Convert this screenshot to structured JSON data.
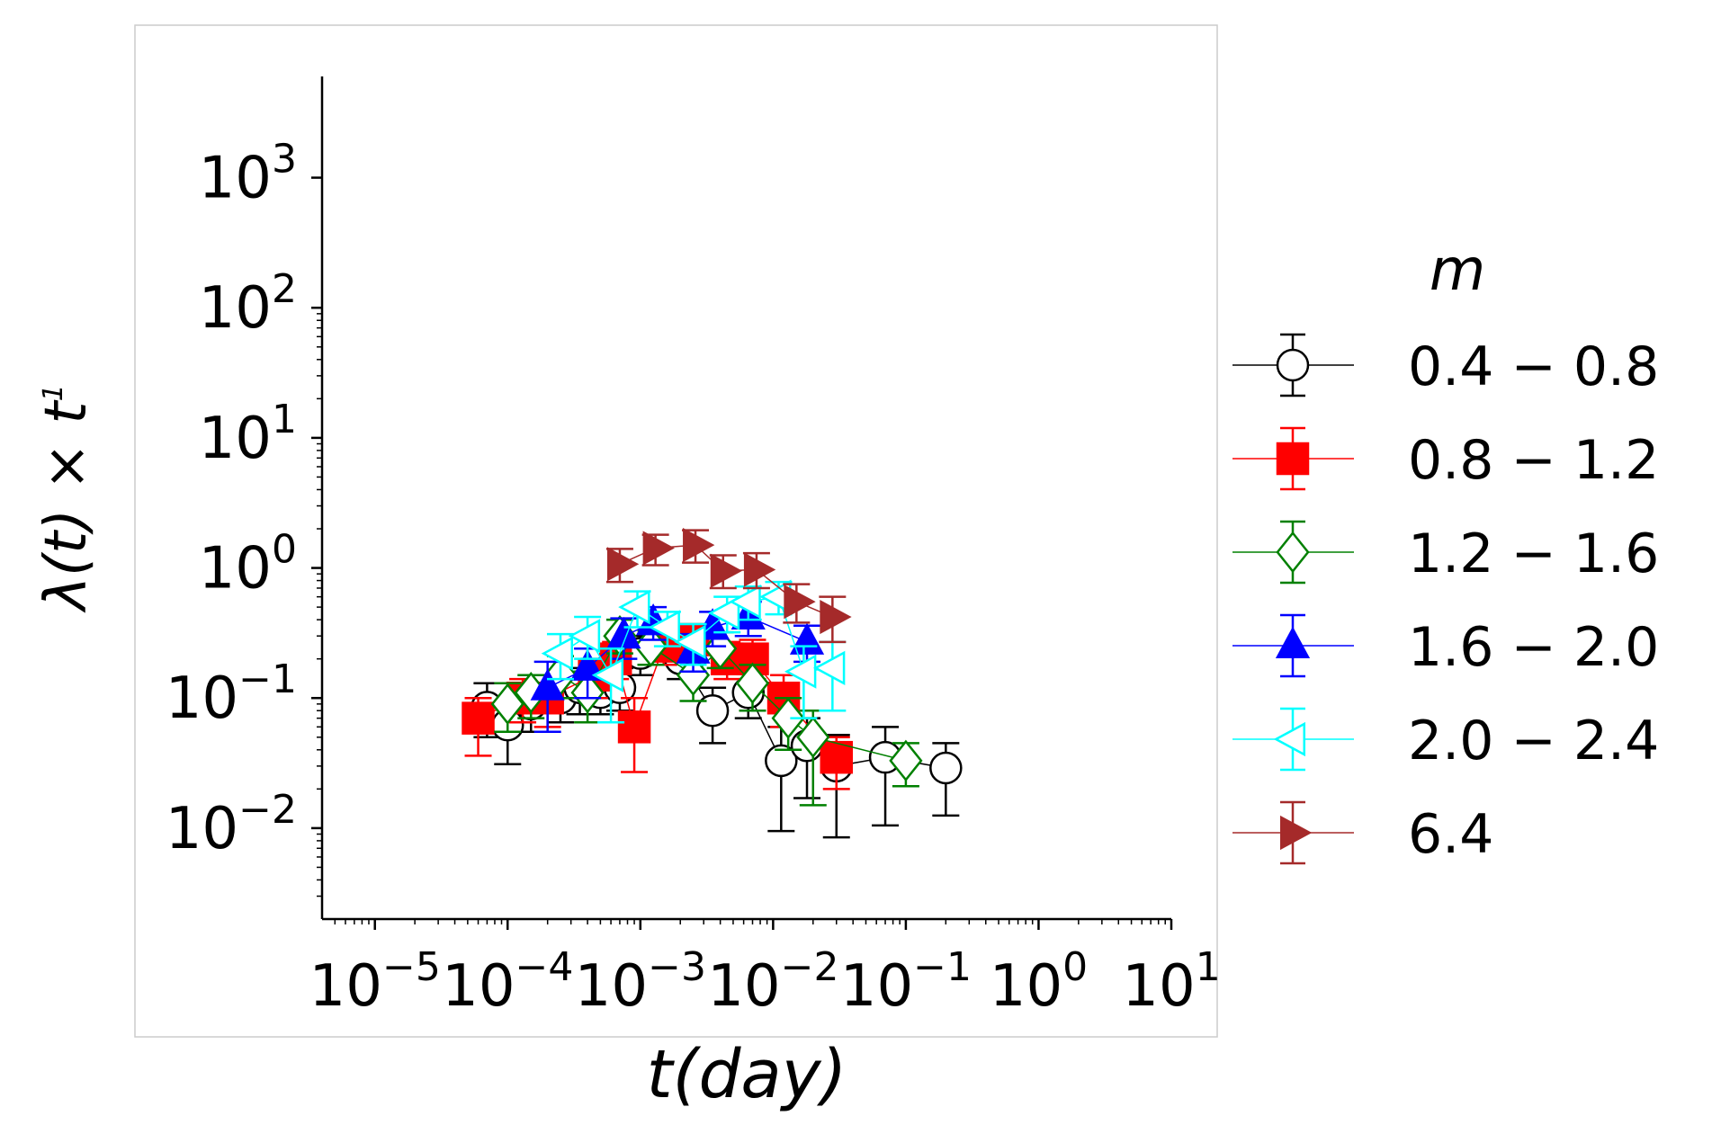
{
  "chart_data": {
    "type": "scatter",
    "title": "",
    "xlabel": "t(day)",
    "ylabel": "λ(t) × t",
    "ylabel_exponent": "1",
    "x_scale": "log",
    "y_scale": "log",
    "xlim": [
      4e-06,
      10
    ],
    "ylim": [
      0.002,
      6000
    ],
    "x_ticks": [
      {
        "value": 1e-05,
        "base": "10",
        "exp": "−5"
      },
      {
        "value": 0.0001,
        "base": "10",
        "exp": "−4"
      },
      {
        "value": 0.001,
        "base": "10",
        "exp": "−3"
      },
      {
        "value": 0.01,
        "base": "10",
        "exp": "−2"
      },
      {
        "value": 0.1,
        "base": "10",
        "exp": "−1"
      },
      {
        "value": 1,
        "base": "10",
        "exp": "0"
      },
      {
        "value": 10,
        "base": "10",
        "exp": "1"
      }
    ],
    "y_ticks": [
      {
        "value": 0.01,
        "base": "10",
        "exp": "−2"
      },
      {
        "value": 0.1,
        "base": "10",
        "exp": "−1"
      },
      {
        "value": 1,
        "base": "10",
        "exp": "0"
      },
      {
        "value": 10,
        "base": "10",
        "exp": "1"
      },
      {
        "value": 100,
        "base": "10",
        "exp": "2"
      },
      {
        "value": 1000,
        "base": "10",
        "exp": "3"
      }
    ],
    "grid": false,
    "legend_title": "m",
    "legend_position": "right, outside",
    "series": [
      {
        "name": "0.4 − 0.8",
        "marker": "circle",
        "filled": false,
        "color": "#000000",
        "points": [
          {
            "x": 7e-05,
            "y": 0.085,
            "lo": 0.05,
            "hi": 0.13
          },
          {
            "x": 0.0001,
            "y": 0.062,
            "lo": 0.031,
            "hi": 0.1
          },
          {
            "x": 0.00015,
            "y": 0.09,
            "lo": 0.055,
            "hi": 0.13
          },
          {
            "x": 0.00025,
            "y": 0.1,
            "lo": 0.065,
            "hi": 0.14
          },
          {
            "x": 0.00035,
            "y": 0.12,
            "lo": 0.075,
            "hi": 0.17
          },
          {
            "x": 0.0005,
            "y": 0.11,
            "lo": 0.075,
            "hi": 0.15
          },
          {
            "x": 0.0007,
            "y": 0.12,
            "lo": 0.08,
            "hi": 0.17
          },
          {
            "x": 0.001,
            "y": 0.22,
            "lo": 0.15,
            "hi": 0.3
          },
          {
            "x": 0.0015,
            "y": 0.25,
            "lo": 0.18,
            "hi": 0.33
          },
          {
            "x": 0.002,
            "y": 0.2,
            "lo": 0.14,
            "hi": 0.27
          },
          {
            "x": 0.0035,
            "y": 0.08,
            "lo": 0.045,
            "hi": 0.12
          },
          {
            "x": 0.0065,
            "y": 0.11,
            "lo": 0.07,
            "hi": 0.16
          },
          {
            "x": 0.0115,
            "y": 0.033,
            "lo": 0.0095,
            "hi": 0.06
          },
          {
            "x": 0.018,
            "y": 0.043,
            "lo": 0.017,
            "hi": 0.07
          },
          {
            "x": 0.03,
            "y": 0.03,
            "lo": 0.0085,
            "hi": 0.052
          },
          {
            "x": 0.07,
            "y": 0.035,
            "lo": 0.0105,
            "hi": 0.06
          },
          {
            "x": 0.2,
            "y": 0.029,
            "lo": 0.0125,
            "hi": 0.045
          }
        ]
      },
      {
        "name": "0.8 − 1.2",
        "marker": "square",
        "filled": true,
        "color": "#ff0000",
        "points": [
          {
            "x": 6e-05,
            "y": 0.07,
            "lo": 0.036,
            "hi": 0.1
          },
          {
            "x": 0.00013,
            "y": 0.1,
            "lo": 0.065,
            "hi": 0.14
          },
          {
            "x": 0.0002,
            "y": 0.1,
            "lo": 0.06,
            "hi": 0.15
          },
          {
            "x": 0.00045,
            "y": 0.15,
            "lo": 0.1,
            "hi": 0.2
          },
          {
            "x": 0.00065,
            "y": 0.2,
            "lo": 0.14,
            "hi": 0.27
          },
          {
            "x": 0.0009,
            "y": 0.06,
            "lo": 0.027,
            "hi": 0.1
          },
          {
            "x": 0.0015,
            "y": 0.25,
            "lo": 0.18,
            "hi": 0.33
          },
          {
            "x": 0.0025,
            "y": 0.28,
            "lo": 0.2,
            "hi": 0.37
          },
          {
            "x": 0.0045,
            "y": 0.2,
            "lo": 0.14,
            "hi": 0.27
          },
          {
            "x": 0.007,
            "y": 0.2,
            "lo": 0.14,
            "hi": 0.28
          },
          {
            "x": 0.012,
            "y": 0.1,
            "lo": 0.06,
            "hi": 0.15
          },
          {
            "x": 0.03,
            "y": 0.035,
            "lo": 0.02,
            "hi": 0.05
          }
        ]
      },
      {
        "name": "1.2 − 1.6",
        "marker": "diamond",
        "filled": false,
        "color": "#008000",
        "points": [
          {
            "x": 0.0001,
            "y": 0.09,
            "lo": 0.055,
            "hi": 0.13
          },
          {
            "x": 0.00015,
            "y": 0.11,
            "lo": 0.07,
            "hi": 0.15
          },
          {
            "x": 0.00025,
            "y": 0.15,
            "lo": 0.1,
            "hi": 0.21
          },
          {
            "x": 0.0004,
            "y": 0.11,
            "lo": 0.065,
            "hi": 0.16
          },
          {
            "x": 0.0007,
            "y": 0.3,
            "lo": 0.22,
            "hi": 0.4
          },
          {
            "x": 0.0012,
            "y": 0.25,
            "lo": 0.18,
            "hi": 0.33
          },
          {
            "x": 0.0025,
            "y": 0.15,
            "lo": 0.095,
            "hi": 0.21
          },
          {
            "x": 0.004,
            "y": 0.24,
            "lo": 0.17,
            "hi": 0.32
          },
          {
            "x": 0.007,
            "y": 0.13,
            "lo": 0.08,
            "hi": 0.18
          },
          {
            "x": 0.013,
            "y": 0.07,
            "lo": 0.04,
            "hi": 0.1
          },
          {
            "x": 0.02,
            "y": 0.05,
            "lo": 0.015,
            "hi": 0.08
          },
          {
            "x": 0.1,
            "y": 0.033,
            "lo": 0.021,
            "hi": 0.045
          }
        ]
      },
      {
        "name": "1.6 − 2.0",
        "marker": "triangle-up",
        "filled": true,
        "color": "#0000ff",
        "points": [
          {
            "x": 0.0002,
            "y": 0.12,
            "lo": 0.055,
            "hi": 0.19
          },
          {
            "x": 0.0004,
            "y": 0.17,
            "lo": 0.1,
            "hi": 0.24
          },
          {
            "x": 0.00075,
            "y": 0.3,
            "lo": 0.2,
            "hi": 0.41
          },
          {
            "x": 0.00125,
            "y": 0.38,
            "lo": 0.28,
            "hi": 0.5
          },
          {
            "x": 0.0025,
            "y": 0.23,
            "lo": 0.16,
            "hi": 0.31
          },
          {
            "x": 0.0035,
            "y": 0.35,
            "lo": 0.25,
            "hi": 0.46
          },
          {
            "x": 0.0065,
            "y": 0.42,
            "lo": 0.3,
            "hi": 0.55
          },
          {
            "x": 0.018,
            "y": 0.27,
            "lo": 0.19,
            "hi": 0.36
          }
        ]
      },
      {
        "name": "2.0 − 2.4",
        "marker": "triangle-left",
        "filled": false,
        "color": "#00ffff",
        "points": [
          {
            "x": 0.00025,
            "y": 0.22,
            "lo": 0.14,
            "hi": 0.31
          },
          {
            "x": 0.0004,
            "y": 0.3,
            "lo": 0.2,
            "hi": 0.42
          },
          {
            "x": 0.0006,
            "y": 0.15,
            "lo": 0.065,
            "hi": 0.24
          },
          {
            "x": 0.00095,
            "y": 0.5,
            "lo": 0.35,
            "hi": 0.66
          },
          {
            "x": 0.0016,
            "y": 0.35,
            "lo": 0.25,
            "hi": 0.46
          },
          {
            "x": 0.0025,
            "y": 0.27,
            "lo": 0.18,
            "hi": 0.37
          },
          {
            "x": 0.0045,
            "y": 0.45,
            "lo": 0.32,
            "hi": 0.6
          },
          {
            "x": 0.0065,
            "y": 0.55,
            "lo": 0.4,
            "hi": 0.72
          },
          {
            "x": 0.011,
            "y": 0.6,
            "lo": 0.44,
            "hi": 0.78
          },
          {
            "x": 0.017,
            "y": 0.16,
            "lo": 0.07,
            "hi": 0.25
          },
          {
            "x": 0.028,
            "y": 0.17,
            "lo": 0.08,
            "hi": 0.27
          }
        ]
      },
      {
        "name": "6.4",
        "marker": "triangle-right",
        "filled": true,
        "color": "#a52a2a",
        "points": [
          {
            "x": 0.0007,
            "y": 1.07,
            "lo": 0.78,
            "hi": 1.4
          },
          {
            "x": 0.0013,
            "y": 1.42,
            "lo": 1.05,
            "hi": 1.8
          },
          {
            "x": 0.0026,
            "y": 1.5,
            "lo": 1.1,
            "hi": 1.95
          },
          {
            "x": 0.0042,
            "y": 0.95,
            "lo": 0.7,
            "hi": 1.25
          },
          {
            "x": 0.0075,
            "y": 0.97,
            "lo": 0.7,
            "hi": 1.3
          },
          {
            "x": 0.015,
            "y": 0.55,
            "lo": 0.38,
            "hi": 0.75
          },
          {
            "x": 0.028,
            "y": 0.42,
            "lo": 0.27,
            "hi": 0.6
          }
        ]
      }
    ]
  }
}
